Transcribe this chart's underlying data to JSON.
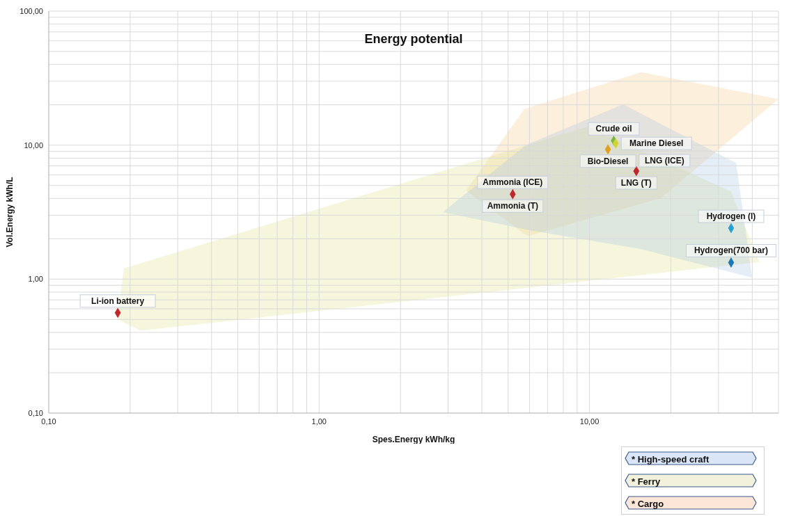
{
  "chart_data": {
    "type": "scatter",
    "title": "Energy potential",
    "xlabel": "Spes.Energy kWh/kg",
    "ylabel": "Vol.Energy kWh/L",
    "log": "xy",
    "grid": true,
    "marker": "diamond",
    "xlim": [
      0.1,
      50
    ],
    "ylim": [
      0.1,
      100
    ],
    "xticks": [
      {
        "value": 0.1,
        "label": "0,10"
      },
      {
        "value": 0.2,
        "label": null
      },
      {
        "value": 0.3,
        "label": null
      },
      {
        "value": 0.4,
        "label": null
      },
      {
        "value": 0.5,
        "label": null
      },
      {
        "value": 0.6,
        "label": null
      },
      {
        "value": 0.7,
        "label": null
      },
      {
        "value": 0.8,
        "label": null
      },
      {
        "value": 0.9,
        "label": null
      },
      {
        "value": 1,
        "label": "1,00"
      },
      {
        "value": 2,
        "label": null
      },
      {
        "value": 3,
        "label": null
      },
      {
        "value": 4,
        "label": null
      },
      {
        "value": 5,
        "label": null
      },
      {
        "value": 6,
        "label": null
      },
      {
        "value": 7,
        "label": null
      },
      {
        "value": 8,
        "label": null
      },
      {
        "value": 9,
        "label": null
      },
      {
        "value": 10,
        "label": "10,00"
      },
      {
        "value": 20,
        "label": null
      },
      {
        "value": 30,
        "label": null
      },
      {
        "value": 40,
        "label": null
      },
      {
        "value": 50,
        "label": null
      }
    ],
    "yticks": [
      {
        "value": 0.1,
        "label": "0,10"
      },
      {
        "value": 0.2,
        "label": null
      },
      {
        "value": 0.3,
        "label": null
      },
      {
        "value": 0.4,
        "label": null
      },
      {
        "value": 0.5,
        "label": null
      },
      {
        "value": 0.6,
        "label": null
      },
      {
        "value": 0.7,
        "label": null
      },
      {
        "value": 0.8,
        "label": null
      },
      {
        "value": 0.9,
        "label": null
      },
      {
        "value": 1,
        "label": "1,00"
      },
      {
        "value": 2,
        "label": null
      },
      {
        "value": 3,
        "label": null
      },
      {
        "value": 4,
        "label": null
      },
      {
        "value": 5,
        "label": null
      },
      {
        "value": 6,
        "label": null
      },
      {
        "value": 7,
        "label": null
      },
      {
        "value": 8,
        "label": null
      },
      {
        "value": 9,
        "label": null
      },
      {
        "value": 10,
        "label": "10,00"
      },
      {
        "value": 20,
        "label": null
      },
      {
        "value": 30,
        "label": null
      },
      {
        "value": 40,
        "label": null
      },
      {
        "value": 50,
        "label": null
      },
      {
        "value": 60,
        "label": null
      },
      {
        "value": 70,
        "label": null
      },
      {
        "value": 80,
        "label": null
      },
      {
        "value": 90,
        "label": null
      },
      {
        "value": 100,
        "label": "100,00"
      }
    ],
    "x": [
      0.18,
      5.2,
      12.3,
      12.5,
      11.7,
      14.9,
      33.4,
      33.4
    ],
    "values": [
      0.56,
      4.3,
      10.8,
      10.3,
      9.3,
      6.4,
      2.4,
      1.33
    ],
    "colors": [
      "#c0282d",
      "#c0282d",
      "#7ab648",
      "#d4d430",
      "#e0a020",
      "#c0282d",
      "#2aa0d0",
      "#1f78b4"
    ],
    "annotations": [
      {
        "text": "Li-ion battery",
        "x": 0.18,
        "y": 0.56
      },
      {
        "text": "Ammonia (ICE)",
        "x": 5.2,
        "y": 4.3
      },
      {
        "text": "Ammonia (T)",
        "x": 5.2,
        "y": 4.3
      },
      {
        "text": "Crude oil",
        "x": 12.3,
        "y": 10.8
      },
      {
        "text": "Marine Diesel",
        "x": 12.5,
        "y": 10.3
      },
      {
        "text": "Bio-Diesel",
        "x": 11.7,
        "y": 9.3
      },
      {
        "text": "LNG (T)",
        "x": 14.9,
        "y": 6.4
      },
      {
        "text": "LNG (ICE)",
        "x": 14.9,
        "y": 6.4
      },
      {
        "text": "Hydrogen (l)",
        "x": 33.4,
        "y": 2.4
      },
      {
        "text": "Hydrogen(700 bar)",
        "x": 33.4,
        "y": 1.33
      },
      "* High-speed craft",
      "* Ferry",
      "* Cargo"
    ]
  }
}
